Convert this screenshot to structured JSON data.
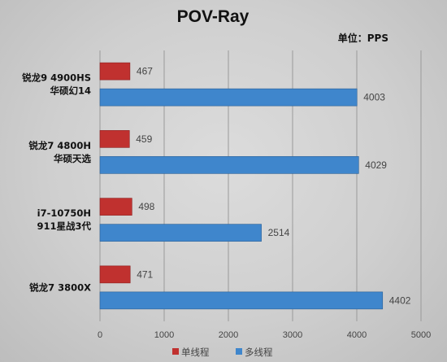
{
  "chart_data": {
    "type": "bar",
    "orientation": "horizontal",
    "title": "POV-Ray",
    "unit_label": "单位：PPS",
    "categories": [
      [
        "锐龙9 4900HS",
        "华硕幻14"
      ],
      [
        "锐龙7 4800H",
        "华硕天选"
      ],
      [
        "i7-10750H",
        "911星战3代"
      ],
      [
        "锐龙7 3800X"
      ]
    ],
    "series": [
      {
        "name": "单线程",
        "color": "#c0312f",
        "values": [
          467,
          459,
          498,
          471
        ]
      },
      {
        "name": "多线程",
        "color": "#3f86cc",
        "values": [
          4003,
          4029,
          2514,
          4402
        ]
      }
    ],
    "xlim": [
      0,
      5000
    ],
    "xticks": [
      0,
      1000,
      2000,
      3000,
      4000,
      5000
    ],
    "grid": true,
    "legend_position": "bottom"
  }
}
